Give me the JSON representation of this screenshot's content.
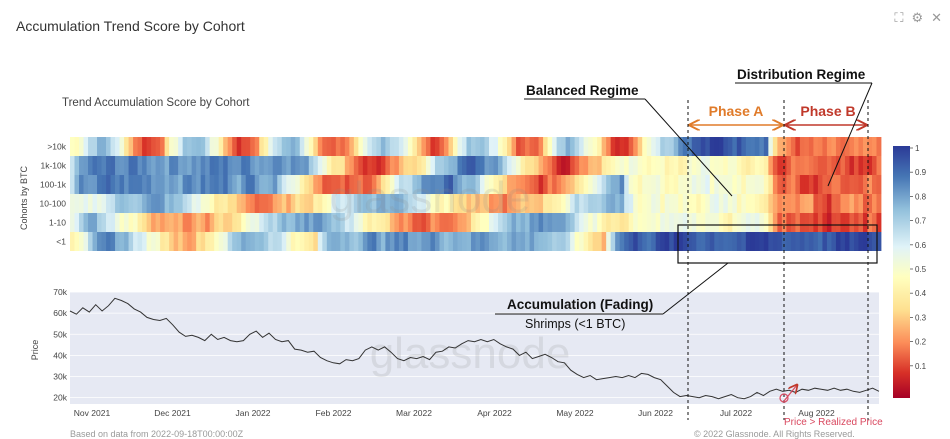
{
  "panel": {
    "title": "Accumulation Trend Score by Cohort"
  },
  "window_icons": [
    "expand-icon",
    "settings-icon",
    "close-icon"
  ],
  "chart_data": [
    {
      "type": "heatmap",
      "title": "Trend Accumulation Score by Cohort",
      "ylabel": "Cohorts by BTC",
      "rows": [
        ">10k",
        "1k-10k",
        "100-1k",
        "10-100",
        "1-10",
        "<1"
      ],
      "colorbar": {
        "ticks": [
          "1",
          "0.9",
          "0.8",
          "0.7",
          "0.6",
          "0.5",
          "0.4",
          "0.3",
          "0.2",
          "0.1"
        ],
        "range": [
          0,
          1
        ]
      },
      "watermark": "glassnode",
      "annotations": {
        "balanced": "Balanced Regime",
        "distribution": "Distribution Regime",
        "phase_a": "Phase A",
        "phase_b": "Phase B",
        "accumulation_title": "Accumulation (Fading)",
        "accumulation_sub": "Shrimps (<1 BTC)"
      }
    },
    {
      "type": "line",
      "ylabel": "Price",
      "yticks": [
        "70k",
        "60k",
        "50k",
        "40k",
        "30k",
        "20k"
      ],
      "y_range": [
        17000,
        70000
      ],
      "xticks": [
        "Nov 2021",
        "Dec 2021",
        "Jan 2022",
        "Feb 2022",
        "Mar 2022",
        "Apr 2022",
        "May 2022",
        "Jun 2022",
        "Jul 2022",
        "Aug 2022"
      ],
      "series": [
        {
          "values": [
            61000,
            59500,
            62500,
            60500,
            64000,
            61000,
            63500,
            67000,
            66000,
            64500,
            62000,
            60500,
            58000,
            57000,
            56500,
            57500,
            54500,
            51000,
            49000,
            49500,
            48500,
            47000,
            50000,
            47500,
            48500,
            47000,
            46500,
            47000,
            50000,
            51500,
            48500,
            50500,
            47500,
            46500,
            47000,
            43000,
            42500,
            41500,
            42000,
            39000,
            37500,
            36500,
            36000,
            38000,
            37500,
            38500,
            42500,
            44000,
            42500,
            44000,
            41500,
            38500,
            37500,
            39000,
            38500,
            39500,
            38000,
            41500,
            42000,
            44000,
            43500,
            45500,
            47000,
            46500,
            47500,
            46500,
            47500,
            45500,
            44000,
            43000,
            40000,
            41500,
            38500,
            39500,
            40500,
            39000,
            37000,
            36500,
            33000,
            31000,
            29500,
            30500,
            28500,
            29000,
            29500,
            30000,
            29500,
            30500,
            29500,
            31500,
            31000,
            29500,
            28500,
            25500,
            22500,
            20500,
            21000,
            20500,
            20000,
            21000,
            20500,
            19500,
            20500,
            21500,
            20000,
            19500,
            20500,
            22500,
            21000,
            23000,
            24000,
            23000,
            23500,
            22500,
            24000,
            23500,
            24500,
            24000,
            23500,
            24500,
            23500,
            24000,
            23000,
            22500,
            23500,
            24500,
            23000
          ]
        }
      ],
      "watermark": "glassnode",
      "annotations": {
        "realized": "Price > Realized Price"
      }
    }
  ],
  "footer": {
    "left": "Based on data from 2022-09-18T00:00:00Z",
    "right": "© 2022 Glassnode. All Rights Reserved."
  }
}
